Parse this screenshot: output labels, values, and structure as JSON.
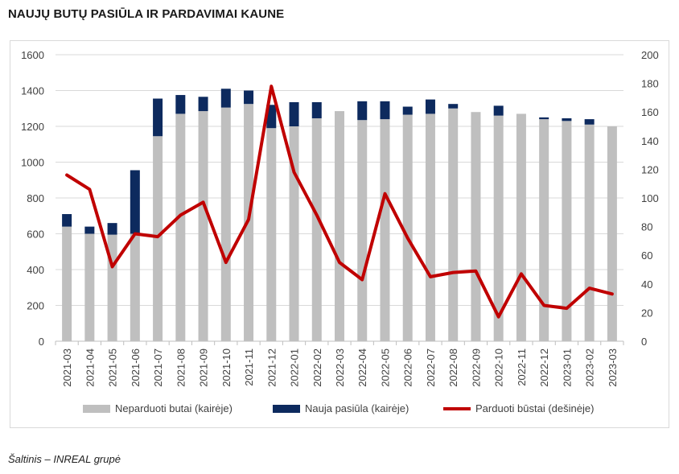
{
  "title": "NAUJŲ BUTŲ PASIŪLA IR PARDAVIMAI KAUNE",
  "source": "Šaltinis – INREAL grupė",
  "chart_data": {
    "type": "bar",
    "categories": [
      "2021-03",
      "2021-04",
      "2021-05",
      "2021-06",
      "2021-07",
      "2021-08",
      "2021-09",
      "2021-10",
      "2021-11",
      "2021-12",
      "2022-01",
      "2022-02",
      "2022-03",
      "2022-04",
      "2022-05",
      "2022-06",
      "2022-07",
      "2022-08",
      "2022-09",
      "2022-10",
      "2022-11",
      "2022-12",
      "2023-01",
      "2023-02",
      "2023-03"
    ],
    "series": [
      {
        "name": "Neparduoti butai (kairėje)",
        "kind": "bar",
        "axis": "left",
        "color": "#bfbfbf",
        "values": [
          640,
          600,
          595,
          600,
          1145,
          1270,
          1285,
          1305,
          1325,
          1190,
          1200,
          1245,
          1285,
          1235,
          1240,
          1265,
          1270,
          1300,
          1280,
          1260,
          1270,
          1240,
          1230,
          1210,
          1200
        ]
      },
      {
        "name": "Nauja pasiūla (kairėje)",
        "kind": "bar",
        "axis": "left",
        "color": "#0d2a5e",
        "values": [
          70,
          40,
          65,
          355,
          210,
          105,
          80,
          105,
          75,
          130,
          135,
          90,
          0,
          105,
          100,
          45,
          80,
          25,
          0,
          55,
          0,
          10,
          15,
          30,
          0
        ]
      },
      {
        "name": "Parduoti būstai (dešinėje)",
        "kind": "line",
        "axis": "right",
        "color": "#c00000",
        "values": [
          116,
          106,
          52,
          75,
          73,
          88,
          97,
          55,
          85,
          178,
          118,
          88,
          55,
          43,
          103,
          72,
          45,
          48,
          49,
          17,
          47,
          25,
          23,
          37,
          33
        ]
      }
    ],
    "y_left": {
      "min": 0,
      "max": 1600,
      "ticks": [
        0,
        200,
        400,
        600,
        800,
        1000,
        1200,
        1400,
        1600
      ]
    },
    "y_right": {
      "min": 0,
      "max": 200,
      "ticks": [
        0,
        20,
        40,
        60,
        80,
        100,
        120,
        140,
        160,
        180,
        200
      ]
    },
    "grid": true,
    "legend_position": "bottom"
  }
}
